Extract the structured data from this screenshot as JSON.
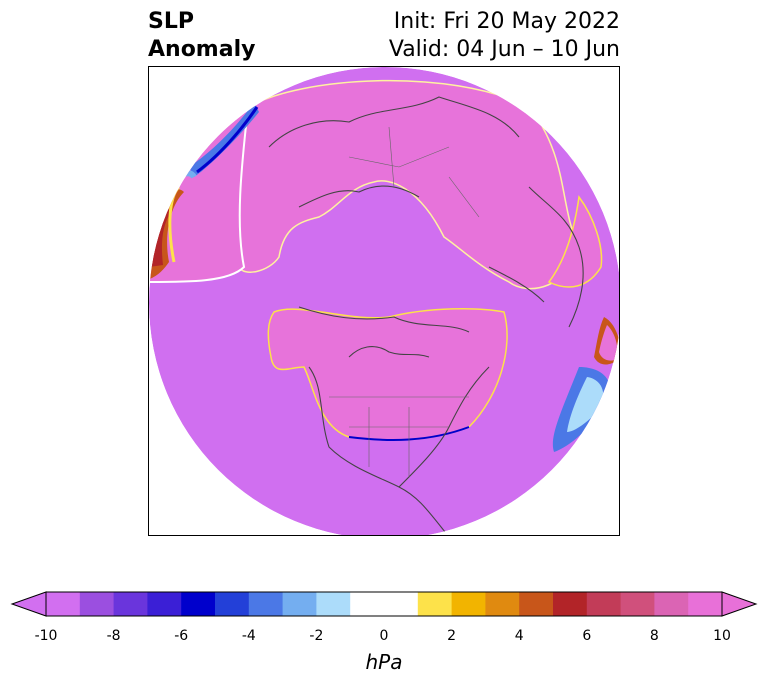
{
  "title": {
    "left_line1": "SLP",
    "left_line2": "Anomaly",
    "right_line1": "Init: Fri 20 May 2022",
    "right_line2": "Valid: 04 Jun – 10 Jun"
  },
  "colorbar": {
    "label": "hPa",
    "ticks": [
      "-10",
      "-8",
      "-6",
      "-4",
      "-2",
      "0",
      "2",
      "4",
      "6",
      "8",
      "10"
    ],
    "colors": [
      "#d26ff0",
      "#9b4fe0",
      "#6a35dc",
      "#3b1fd6",
      "#0000cc",
      "#2340d8",
      "#4b78e6",
      "#74aef0",
      "#acdcfa",
      "#ffffff",
      "#ffffff",
      "#fde24a",
      "#f2b400",
      "#e08a10",
      "#c8561a",
      "#b22428",
      "#c23c58",
      "#d0507c",
      "#db64b4",
      "#e870d8"
    ],
    "under_color": "#d26ff0",
    "over_color": "#e870d8"
  },
  "map": {
    "background_color": "#d274ec",
    "positive_color": "#e773da",
    "negative_color": "#d26ff0"
  }
}
